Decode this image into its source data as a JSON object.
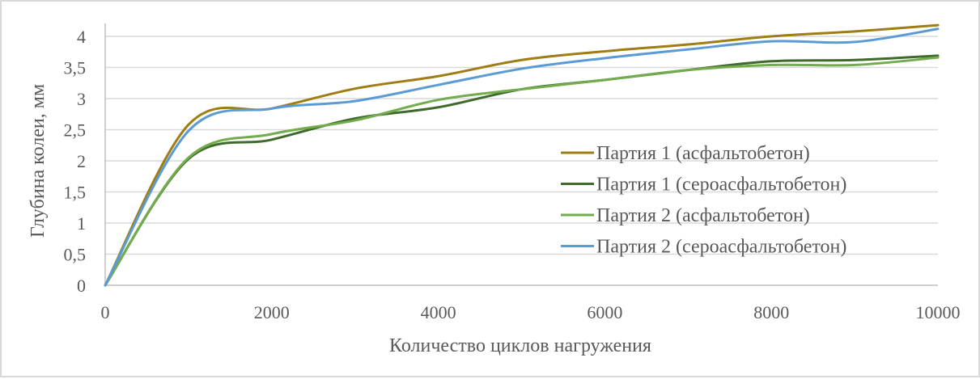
{
  "chart_data": {
    "type": "line",
    "title": "",
    "xlabel": "Количество циклов нагружения",
    "ylabel": "Глубина колеи, мм",
    "x": [
      0,
      1000,
      2000,
      3000,
      4000,
      5000,
      6000,
      7000,
      8000,
      9000,
      10000
    ],
    "xlim": [
      0,
      10000
    ],
    "ylim": [
      0,
      4
    ],
    "x_ticks": [
      "0",
      "2000",
      "4000",
      "6000",
      "8000",
      "10000"
    ],
    "x_tick_values": [
      0,
      2000,
      4000,
      6000,
      8000,
      10000
    ],
    "y_ticks": [
      "0",
      "0,5",
      "1",
      "1,5",
      "2",
      "2,5",
      "3",
      "3,5",
      "4"
    ],
    "y_tick_values": [
      0,
      0.5,
      1,
      1.5,
      2,
      2.5,
      3,
      3.5,
      4
    ],
    "grid": "horizontal",
    "legend_position": "inside-right",
    "series": [
      {
        "name": "Партия 1 (асфальтобетон)",
        "color": "#a07d12",
        "values": [
          0,
          2.58,
          2.84,
          3.16,
          3.36,
          3.62,
          3.76,
          3.87,
          4.0,
          4.08,
          4.18
        ]
      },
      {
        "name": "Партия 1 (сероасфальтобетон)",
        "color": "#3f6a2c",
        "values": [
          0,
          2.03,
          2.34,
          2.68,
          2.86,
          3.15,
          3.3,
          3.46,
          3.6,
          3.62,
          3.69
        ]
      },
      {
        "name": "Партия 2 (асфальтобетон)",
        "color": "#72ac4d",
        "values": [
          0,
          2.05,
          2.43,
          2.65,
          2.98,
          3.15,
          3.3,
          3.46,
          3.54,
          3.54,
          3.66
        ]
      },
      {
        "name": "Партия 2 (сероасфальтобетон)",
        "color": "#5b9bd5",
        "values": [
          0,
          2.48,
          2.84,
          2.96,
          3.22,
          3.48,
          3.65,
          3.79,
          3.92,
          3.91,
          4.12
        ]
      }
    ]
  }
}
